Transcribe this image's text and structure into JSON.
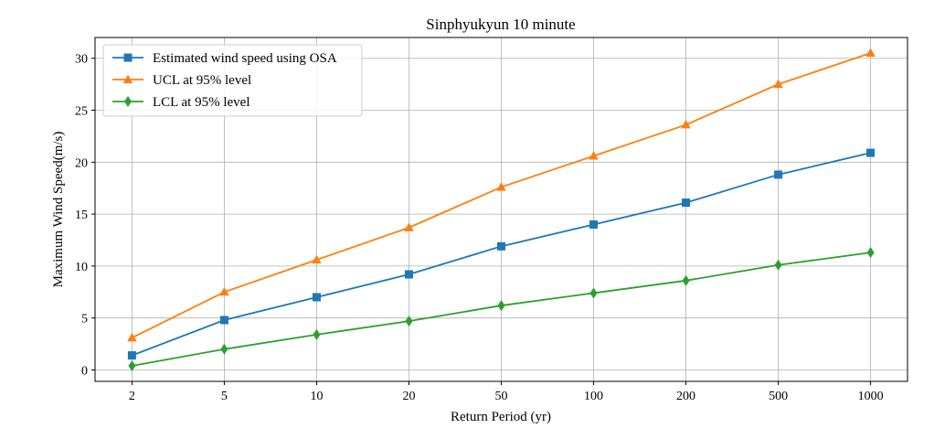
{
  "chart_data": {
    "type": "line",
    "title": "Sinphyukyun 10 minute",
    "xlabel": "Return Period (yr)",
    "ylabel": "Maximum Wind Speed(m/s)",
    "categories": [
      "2",
      "5",
      "10",
      "20",
      "50",
      "100",
      "200",
      "500",
      "1000"
    ],
    "ylim": [
      -1.1,
      32.0
    ],
    "yticks": [
      "0",
      "5",
      "10",
      "15",
      "20",
      "25",
      "30"
    ],
    "grid": true,
    "legend_position": "top-left",
    "series": [
      {
        "name": "Estimated wind speed using OSA",
        "color": "#1f77b4",
        "marker": "square",
        "values": [
          1.4,
          4.8,
          7.0,
          9.2,
          11.9,
          14.0,
          16.1,
          18.8,
          20.9
        ]
      },
      {
        "name": "UCL at 95% level",
        "color": "#ff7f0e",
        "marker": "triangle",
        "values": [
          3.1,
          7.5,
          10.6,
          13.7,
          17.6,
          20.6,
          23.6,
          27.5,
          30.5
        ]
      },
      {
        "name": "LCL at 95% level",
        "color": "#2ca02c",
        "marker": "diamond",
        "values": [
          0.4,
          2.0,
          3.4,
          4.7,
          6.2,
          7.4,
          8.6,
          10.1,
          11.3
        ]
      }
    ]
  }
}
